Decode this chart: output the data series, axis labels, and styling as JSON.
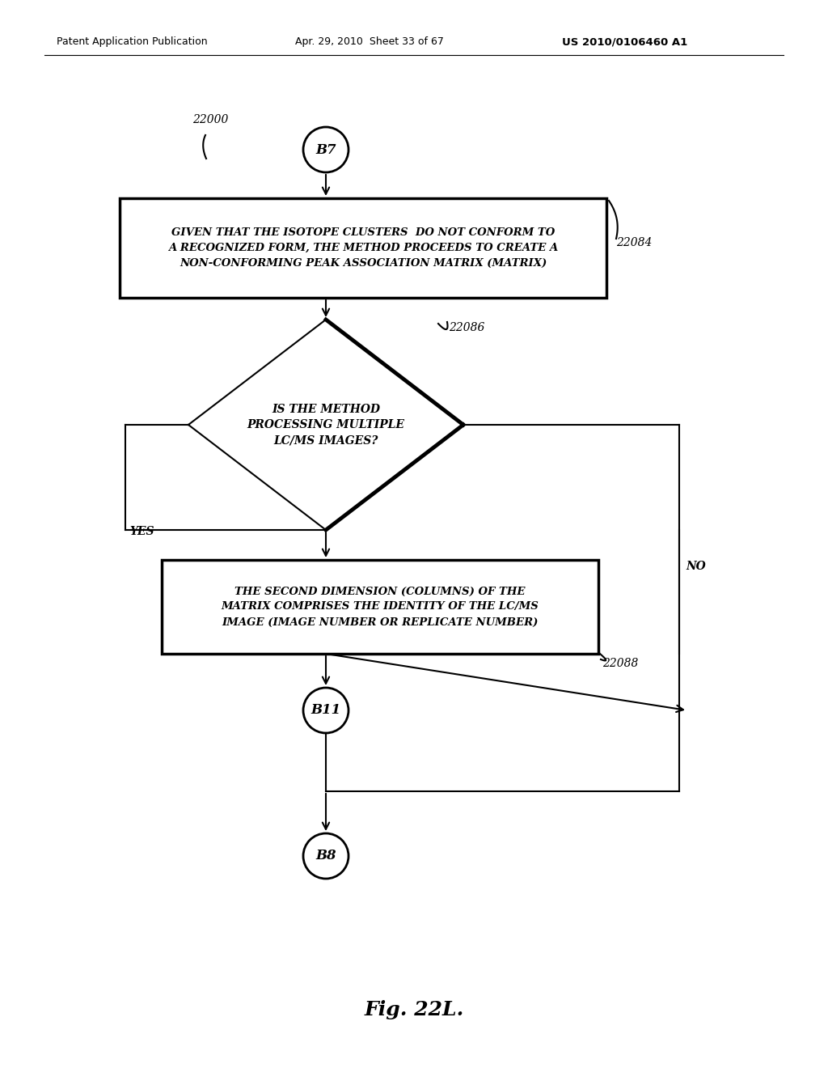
{
  "header_left": "Patent Application Publication",
  "header_mid": "Apr. 29, 2010  Sheet 33 of 67",
  "header_right": "US 2010/0106460 A1",
  "footer": "Fig. 22L.",
  "node_b7": "B7",
  "node_b11": "B11",
  "node_b8": "B8",
  "label_22000": "22000",
  "label_22084": "22084",
  "label_22086": "22086",
  "label_22088": "22088",
  "label_yes": "YES",
  "label_no": "NO",
  "box1_text": "GIVEN THAT THE ISOTOPE CLUSTERS  DO NOT CONFORM TO\nA RECOGNIZED FORM, THE METHOD PROCEEDS TO CREATE A\nNON-CONFORMING PEAK ASSOCIATION MATRIX (MATRIX)",
  "diamond_text": "IS THE METHOD\nPROCESSING MULTIPLE\nLC/MS IMAGES?",
  "box2_text": "THE SECOND DIMENSION (COLUMNS) OF THE\nMATRIX COMPRISES THE IDENTITY OF THE LC/MS\nIMAGE (IMAGE NUMBER OR REPLICATE NUMBER)",
  "bg_color": "#ffffff",
  "text_color": "#000000",
  "line_color": "#000000"
}
